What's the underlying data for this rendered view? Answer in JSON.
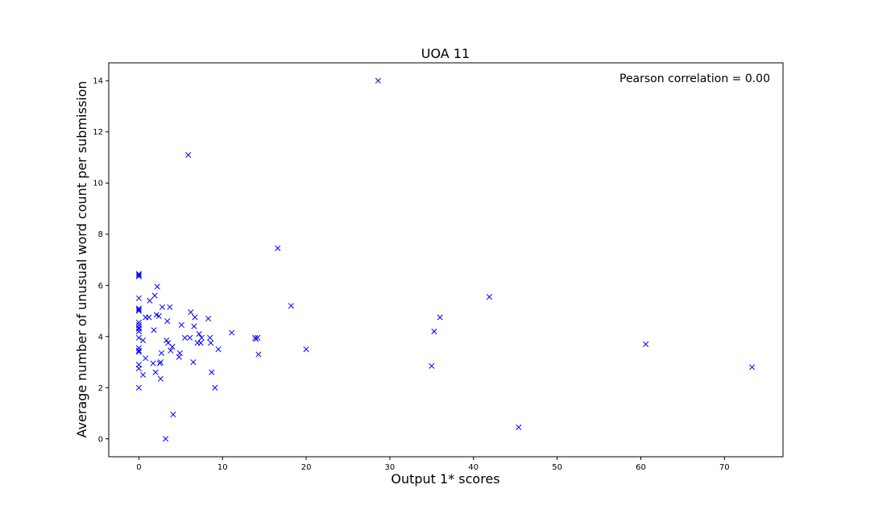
{
  "chart_data": {
    "type": "scatter",
    "title": "UOA 11",
    "xlabel": "Output 1* scores",
    "ylabel": "Average number of unusual word count per submission",
    "annotation": "Pearson correlation = 0.00",
    "xlim": [
      -3.6,
      77
    ],
    "ylim": [
      -0.7,
      14.7
    ],
    "xticks": [
      0,
      10,
      20,
      30,
      40,
      50,
      60,
      70
    ],
    "yticks": [
      0,
      2,
      4,
      6,
      8,
      10,
      12,
      14
    ],
    "grid": false,
    "marker": "x",
    "color": "#0000ff",
    "points": [
      [
        0,
        6.45
      ],
      [
        0,
        6.4
      ],
      [
        0,
        6.35
      ],
      [
        0,
        5.5
      ],
      [
        0,
        5.1
      ],
      [
        0,
        5.05
      ],
      [
        0,
        5.0
      ],
      [
        0,
        4.55
      ],
      [
        0,
        4.45
      ],
      [
        0,
        4.35
      ],
      [
        0,
        4.3
      ],
      [
        0,
        4.2
      ],
      [
        0,
        3.95
      ],
      [
        0,
        3.55
      ],
      [
        0,
        3.45
      ],
      [
        0,
        3.4
      ],
      [
        0,
        2.9
      ],
      [
        0,
        2.75
      ],
      [
        0,
        2.0
      ],
      [
        0.5,
        3.85
      ],
      [
        0.5,
        2.5
      ],
      [
        0.8,
        4.75
      ],
      [
        0.8,
        3.15
      ],
      [
        1.2,
        4.75
      ],
      [
        1.3,
        5.4
      ],
      [
        1.7,
        2.95
      ],
      [
        1.8,
        4.25
      ],
      [
        1.9,
        5.6
      ],
      [
        2.0,
        2.6
      ],
      [
        2.1,
        4.85
      ],
      [
        2.2,
        5.95
      ],
      [
        2.4,
        4.8
      ],
      [
        2.5,
        2.95
      ],
      [
        2.6,
        3.0
      ],
      [
        2.6,
        2.35
      ],
      [
        2.7,
        3.35
      ],
      [
        2.8,
        5.15
      ],
      [
        3.2,
        0.0
      ],
      [
        3.3,
        3.85
      ],
      [
        3.4,
        4.6
      ],
      [
        3.5,
        3.75
      ],
      [
        3.7,
        5.15
      ],
      [
        3.8,
        3.45
      ],
      [
        4.0,
        3.6
      ],
      [
        4.1,
        0.95
      ],
      [
        4.8,
        3.2
      ],
      [
        4.9,
        3.35
      ],
      [
        5.1,
        4.45
      ],
      [
        5.5,
        3.95
      ],
      [
        5.9,
        11.1
      ],
      [
        6.1,
        3.95
      ],
      [
        6.2,
        4.95
      ],
      [
        6.5,
        3.0
      ],
      [
        6.6,
        4.4
      ],
      [
        6.7,
        4.75
      ],
      [
        7.0,
        3.75
      ],
      [
        7.2,
        4.1
      ],
      [
        7.4,
        3.75
      ],
      [
        7.5,
        3.95
      ],
      [
        8.3,
        4.7
      ],
      [
        8.5,
        3.95
      ],
      [
        8.6,
        3.75
      ],
      [
        8.7,
        2.6
      ],
      [
        9.1,
        2.0
      ],
      [
        9.5,
        3.5
      ],
      [
        11.1,
        4.15
      ],
      [
        13.9,
        3.95
      ],
      [
        14.0,
        3.9
      ],
      [
        14.2,
        3.95
      ],
      [
        14.3,
        3.3
      ],
      [
        16.6,
        7.45
      ],
      [
        18.2,
        5.2
      ],
      [
        20.0,
        3.5
      ],
      [
        28.6,
        14.0
      ],
      [
        35.0,
        2.85
      ],
      [
        35.3,
        4.2
      ],
      [
        36.0,
        4.75
      ],
      [
        41.9,
        5.55
      ],
      [
        45.4,
        0.45
      ],
      [
        60.6,
        3.7
      ],
      [
        73.3,
        2.8
      ]
    ]
  }
}
